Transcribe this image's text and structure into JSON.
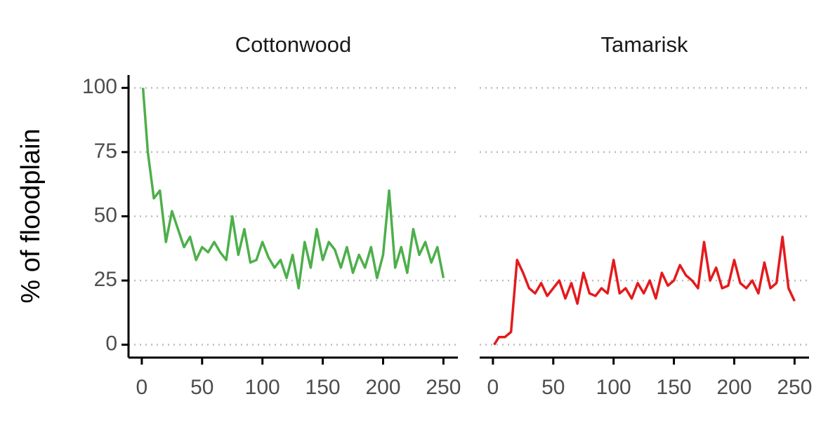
{
  "chart_data": [
    {
      "type": "line",
      "title": "Cottonwood",
      "y_label": "% of floodplain",
      "x": [
        1,
        5,
        10,
        15,
        20,
        25,
        30,
        35,
        40,
        45,
        50,
        55,
        60,
        65,
        70,
        75,
        80,
        85,
        90,
        95,
        100,
        105,
        110,
        115,
        120,
        125,
        130,
        135,
        140,
        145,
        150,
        155,
        160,
        165,
        170,
        175,
        180,
        185,
        190,
        195,
        200,
        205,
        210,
        215,
        220,
        225,
        230,
        235,
        240,
        245,
        250
      ],
      "series": [
        {
          "color": "#4daf4a",
          "values": [
            100,
            75,
            57,
            60,
            40,
            52,
            45,
            38,
            42,
            33,
            38,
            36,
            40,
            36,
            33,
            50,
            35,
            45,
            32,
            33,
            40,
            34,
            30,
            33,
            26,
            35,
            22,
            40,
            30,
            45,
            33,
            40,
            37,
            30,
            38,
            28,
            35,
            30,
            38,
            26,
            35,
            60,
            30,
            38,
            28,
            45,
            35,
            40,
            32,
            38,
            26
          ]
        }
      ],
      "xlim": [
        -11,
        262
      ],
      "ylim": [
        -5,
        105
      ],
      "xticks": [
        0,
        50,
        100,
        150,
        200,
        250
      ],
      "yticks": [
        0,
        25,
        50,
        75,
        100
      ],
      "grid": true
    },
    {
      "type": "line",
      "title": "Tamarisk",
      "x": [
        1,
        5,
        10,
        15,
        20,
        25,
        30,
        35,
        40,
        45,
        50,
        55,
        60,
        65,
        70,
        75,
        80,
        85,
        90,
        95,
        100,
        105,
        110,
        115,
        120,
        125,
        130,
        135,
        140,
        145,
        150,
        155,
        160,
        165,
        170,
        175,
        180,
        185,
        190,
        195,
        200,
        205,
        210,
        215,
        220,
        225,
        230,
        235,
        240,
        245,
        250
      ],
      "series": [
        {
          "color": "#e41a1c",
          "values": [
            0,
            3,
            3,
            5,
            33,
            28,
            22,
            20,
            24,
            19,
            22,
            25,
            18,
            24,
            16,
            28,
            20,
            19,
            22,
            20,
            33,
            20,
            22,
            18,
            24,
            20,
            25,
            18,
            28,
            23,
            25,
            31,
            27,
            25,
            22,
            40,
            25,
            30,
            22,
            23,
            33,
            24,
            22,
            25,
            20,
            32,
            22,
            24,
            42,
            22,
            17
          ]
        }
      ],
      "xlim": [
        -11,
        262
      ],
      "ylim": [
        -5,
        105
      ],
      "xticks": [
        0,
        50,
        100,
        150,
        200,
        250
      ],
      "yticks": [
        0,
        25,
        50,
        75,
        100
      ],
      "grid": true
    }
  ]
}
